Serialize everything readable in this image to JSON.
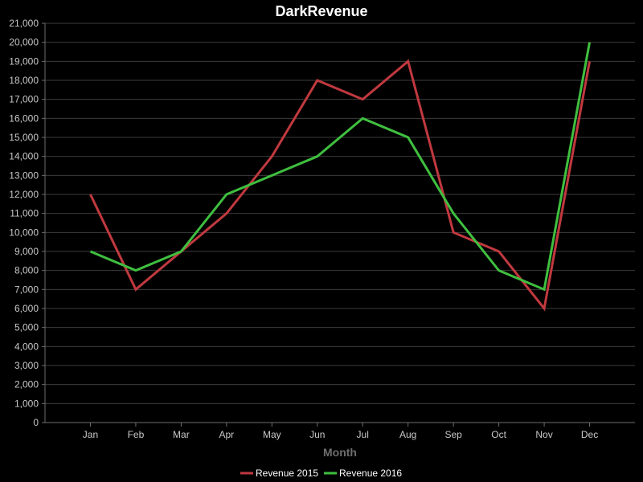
{
  "chart_data": {
    "type": "line",
    "title": "DarkRevenue",
    "xlabel": "Month",
    "ylabel": "",
    "categories": [
      "Jan",
      "Feb",
      "Mar",
      "Apr",
      "May",
      "Jun",
      "Jul",
      "Aug",
      "Sep",
      "Oct",
      "Nov",
      "Dec"
    ],
    "ylim": [
      0,
      21000
    ],
    "yticks": [
      0,
      1000,
      2000,
      3000,
      4000,
      5000,
      6000,
      7000,
      8000,
      9000,
      10000,
      11000,
      12000,
      13000,
      14000,
      15000,
      16000,
      17000,
      18000,
      19000,
      20000,
      21000
    ],
    "grid": true,
    "legend_position": "bottom-center",
    "background": "#000000",
    "series": [
      {
        "name": "Revenue 2015",
        "color": "#c0393f",
        "values": [
          12000,
          7000,
          9000,
          11000,
          14000,
          18000,
          17000,
          19000,
          10000,
          9000,
          6000,
          19000
        ]
      },
      {
        "name": "Revenue 2016",
        "color": "#3fbf3f",
        "values": [
          9000,
          8000,
          9000,
          12000,
          13000,
          14000,
          16000,
          15000,
          11000,
          8000,
          7000,
          20000
        ]
      }
    ]
  }
}
